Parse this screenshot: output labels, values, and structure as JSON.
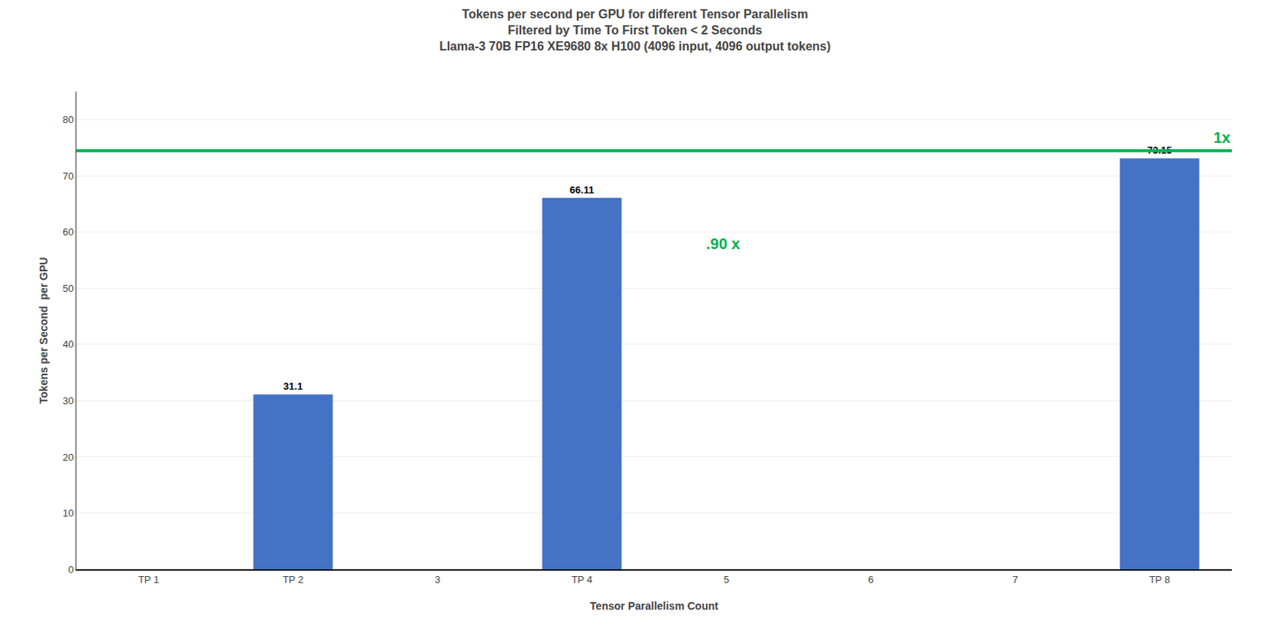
{
  "chart_data": {
    "type": "bar",
    "title": "Tokens per second per GPU for different Tensor Parallelism\nFiltered by Time To First Token < 2 Seconds\nLlama-3 70B FP16 XE9680 8x H100 (4096 input, 4096 output tokens)",
    "x_label": "Tensor Parallelism Count",
    "y_label": "Tokens per Second  per GPU",
    "categories": [
      "TP 1",
      "TP 2",
      "3",
      "TP 4",
      "5",
      "6",
      "7",
      "TP 8"
    ],
    "values": [
      0,
      31.1,
      0,
      66.11,
      0,
      0,
      0,
      73.15
    ],
    "value_labels": [
      null,
      "31.1",
      null,
      "66.11",
      null,
      null,
      null,
      "73.15"
    ],
    "data_labels": true,
    "color": "#4472C4",
    "ylim": [
      0,
      85
    ],
    "yticks": [
      0,
      10,
      20,
      30,
      40,
      50,
      60,
      70,
      80
    ],
    "grid": true,
    "reference_lines": [
      {
        "y": 74.5,
        "label": "1x",
        "color": "#00B050"
      }
    ],
    "annotations": [
      {
        "text": ".90 x",
        "x": 3.85,
        "y": 58,
        "color": "#00B050"
      }
    ]
  }
}
